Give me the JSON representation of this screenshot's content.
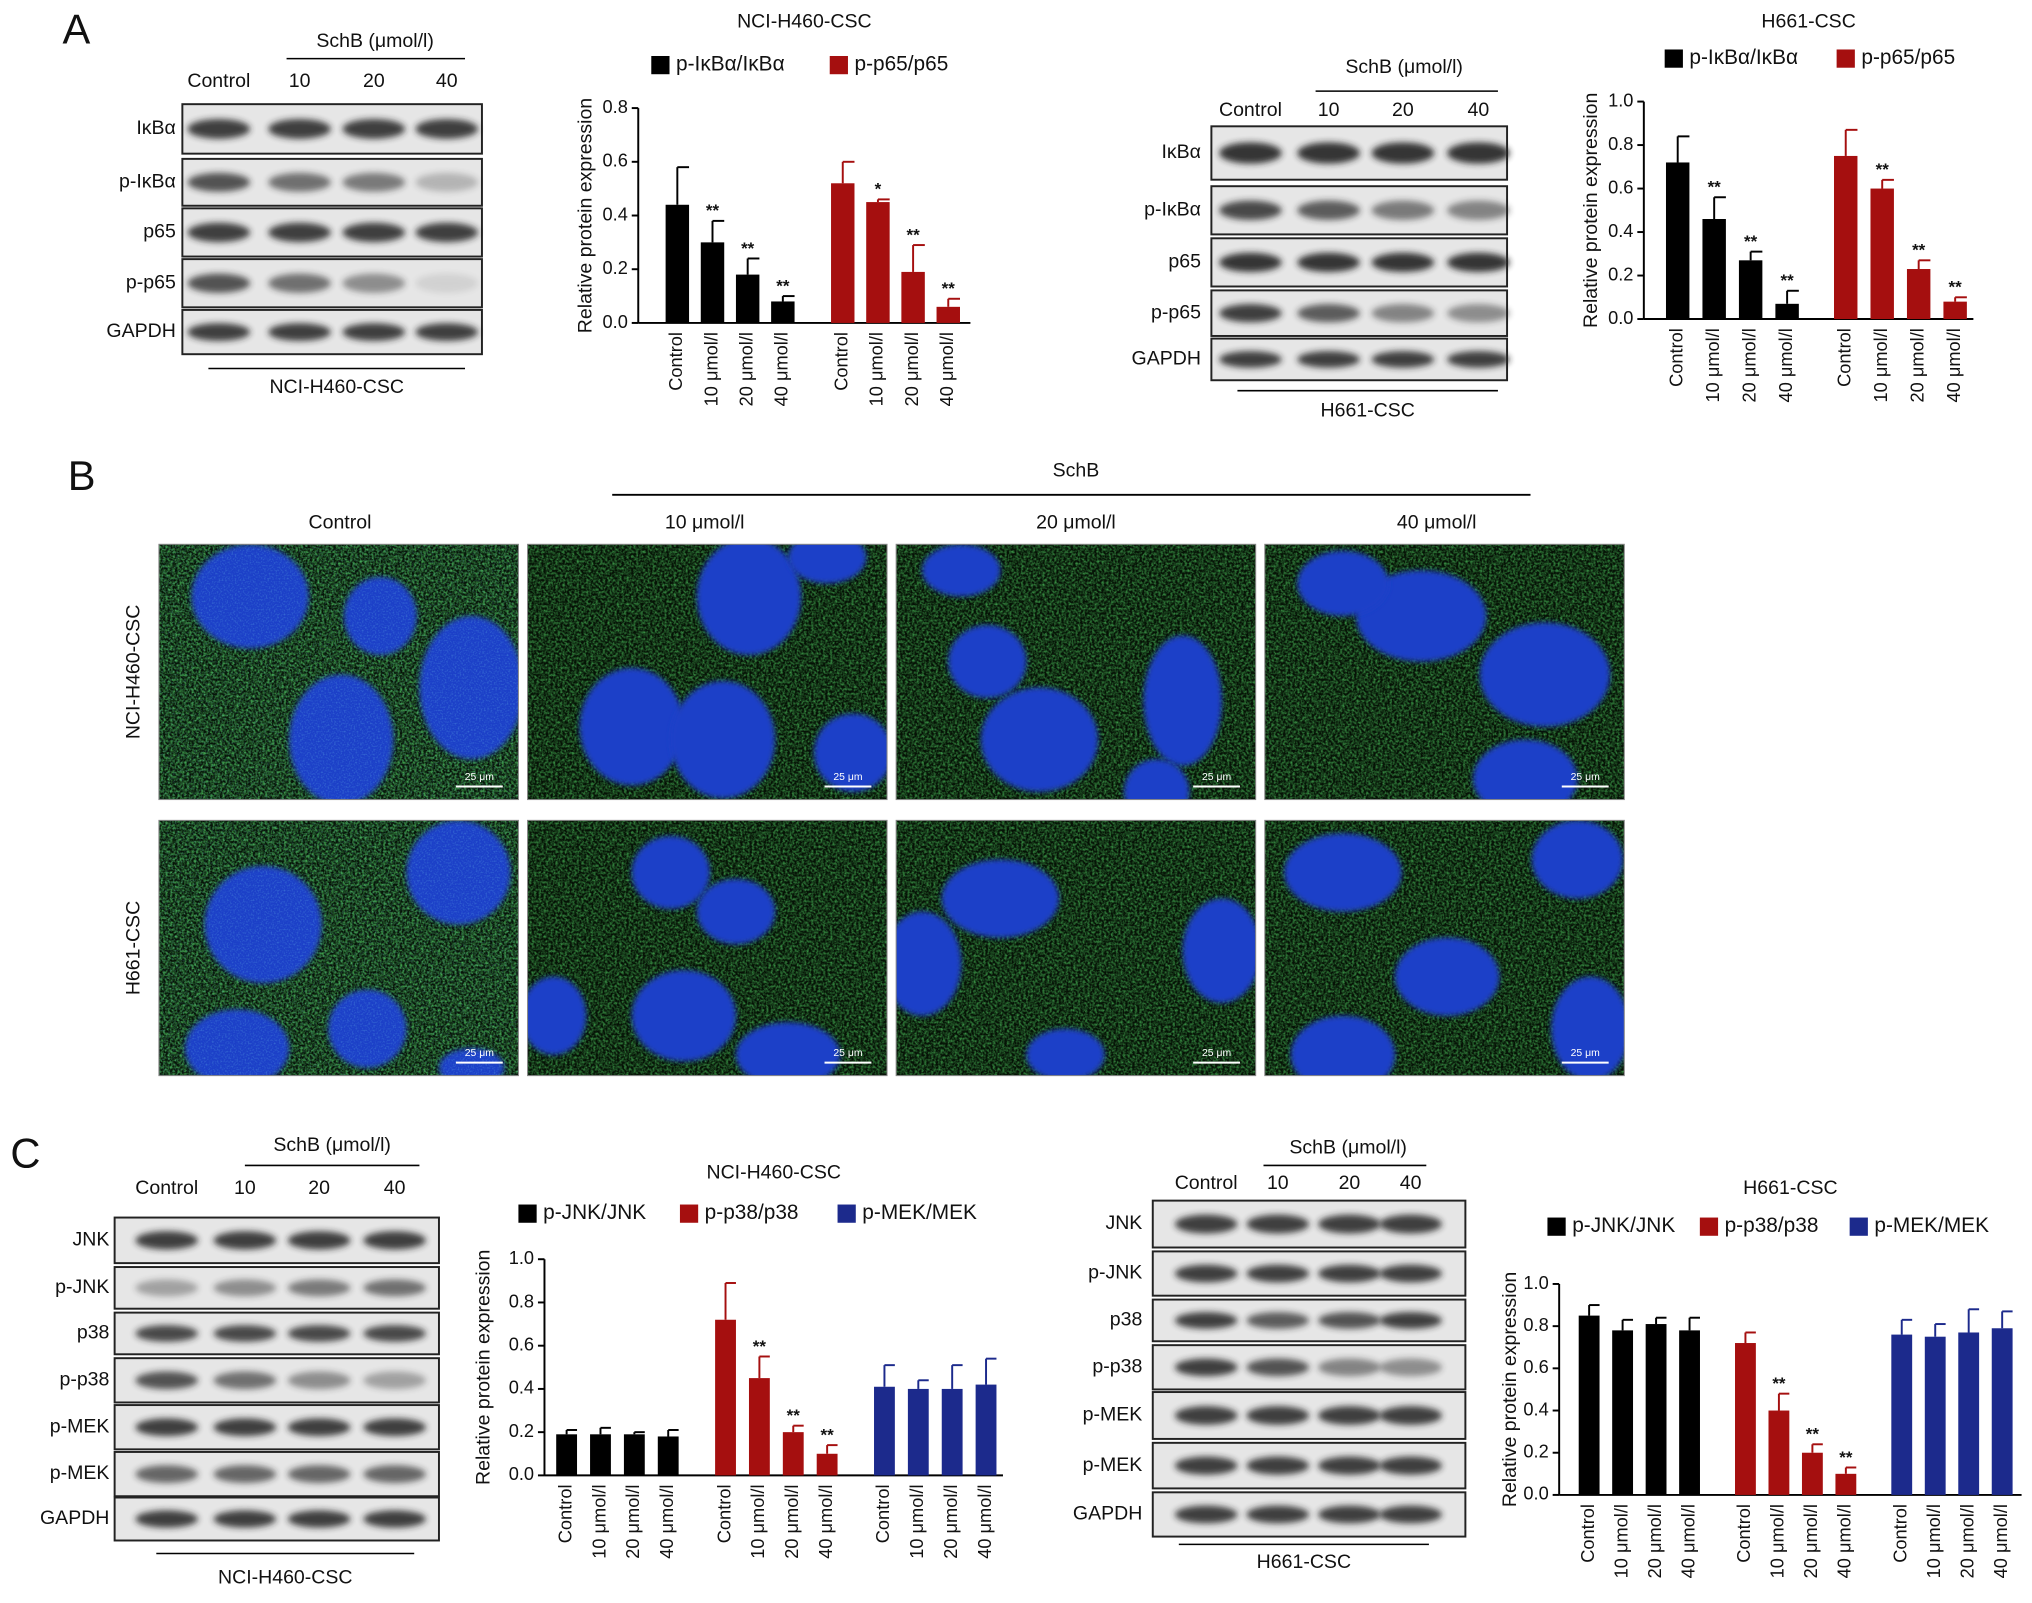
{
  "panels": {
    "a": "A",
    "b": "B",
    "c": "C"
  },
  "blots": [
    {
      "treatment": "SchB (μmol/l)",
      "lanes": [
        "Control",
        "10",
        "20",
        "40"
      ],
      "rows": [
        "IκBα",
        "p-IκBα",
        "p65",
        "p-p65",
        "GAPDH"
      ],
      "cell_line": "NCI-H460-CSC"
    },
    {
      "treatment": "SchB (μmol/l)",
      "lanes": [
        "Control",
        "10",
        "20",
        "40"
      ],
      "rows": [
        "IκBα",
        "p-IκBα",
        "p65",
        "p-p65",
        "GAPDH"
      ],
      "cell_line": "H661-CSC"
    },
    {
      "treatment": "SchB (μmol/l)",
      "lanes": [
        "Control",
        "10",
        "20",
        "40"
      ],
      "rows": [
        "JNK",
        "p-JNK",
        "p38",
        "p-p38",
        "p-MEK",
        "p-MEK",
        "GAPDH"
      ],
      "cell_line": "NCI-H460-CSC"
    },
    {
      "treatment": "SchB (μmol/l)",
      "lanes": [
        "Control",
        "10",
        "20",
        "40"
      ],
      "rows": [
        "JNK",
        "p-JNK",
        "p38",
        "p-p38",
        "p-MEK",
        "p-MEK",
        "GAPDH"
      ],
      "cell_line": "H661-CSC"
    }
  ],
  "microscopy": {
    "treatment": "SchB",
    "columns": [
      "Control",
      "10 μmol/l",
      "20 μmol/l",
      "40 μmol/l"
    ],
    "rows": [
      "NCI-H460-CSC",
      "H661-CSC"
    ],
    "scale_bar": "25 μm"
  },
  "chart_data": [
    {
      "type": "bar",
      "title": "NCI-H460-CSC",
      "ylabel": "Relative protein expression",
      "categories": [
        "Control",
        "10 μmol/l",
        "20 μmol/l",
        "40 μmol/l"
      ],
      "ylim": [
        0,
        0.8
      ],
      "yticks": [
        {
          "value": 0,
          "label": "0.0"
        },
        0.2,
        0.4,
        0.6,
        0.8
      ],
      "series": [
        {
          "name": "p-IκBα/IκBα",
          "color": "#000000",
          "values": [
            0.44,
            0.3,
            0.18,
            0.08
          ],
          "errors": [
            0.14,
            0.08,
            0.06,
            0.02
          ],
          "significance": [
            null,
            "**",
            "**",
            "**"
          ]
        },
        {
          "name": "p-p65/p65",
          "color": "#a50f0f",
          "values": [
            0.52,
            0.45,
            0.19,
            0.06
          ],
          "errors": [
            0.08,
            0.01,
            0.1,
            0.03
          ],
          "significance": [
            null,
            "*",
            "**",
            "**"
          ]
        }
      ]
    },
    {
      "type": "bar",
      "title": "H661-CSC",
      "ylabel": "Relative protein expression",
      "categories": [
        "Control",
        "10 μmol/l",
        "20 μmol/l",
        "40 μmol/l"
      ],
      "ylim": [
        0,
        1.0
      ],
      "yticks": [
        {
          "value": 0,
          "label": "0.0"
        },
        0.2,
        0.4,
        0.6,
        0.8,
        {
          "value": 1,
          "label": "1.0"
        }
      ],
      "series": [
        {
          "name": "p-IκBα/IκBα",
          "color": "#000000",
          "values": [
            0.72,
            0.46,
            0.27,
            0.07
          ],
          "errors": [
            0.12,
            0.1,
            0.04,
            0.06
          ],
          "significance": [
            null,
            "**",
            "**",
            "**"
          ]
        },
        {
          "name": "p-p65/p65",
          "color": "#a50f0f",
          "values": [
            0.75,
            0.6,
            0.23,
            0.08
          ],
          "errors": [
            0.12,
            0.04,
            0.04,
            0.02
          ],
          "significance": [
            null,
            "**",
            "**",
            "**"
          ]
        }
      ]
    },
    {
      "type": "bar",
      "title": "NCI-H460-CSC",
      "ylabel": "Relative protein expression",
      "categories": [
        "Control",
        "10 μmol/l",
        "20 μmol/l",
        "40 μmol/l"
      ],
      "ylim": [
        0,
        1.0
      ],
      "yticks": [
        {
          "value": 0,
          "label": "0.0"
        },
        0.2,
        0.4,
        0.6,
        0.8,
        {
          "value": 1,
          "label": "1.0"
        }
      ],
      "series": [
        {
          "name": "p-JNK/JNK",
          "color": "#000000",
          "values": [
            0.19,
            0.19,
            0.19,
            0.18
          ],
          "errors": [
            0.02,
            0.03,
            0.01,
            0.03
          ]
        },
        {
          "name": "p-p38/p38",
          "color": "#a50f0f",
          "values": [
            0.72,
            0.45,
            0.2,
            0.1
          ],
          "errors": [
            0.17,
            0.1,
            0.03,
            0.04
          ],
          "significance": [
            null,
            "**",
            "**",
            "**"
          ]
        },
        {
          "name": "p-MEK/MEK",
          "color": "#1c2a8c",
          "values": [
            0.41,
            0.4,
            0.4,
            0.42
          ],
          "errors": [
            0.1,
            0.04,
            0.11,
            0.12
          ]
        }
      ]
    },
    {
      "type": "bar",
      "title": "H661-CSC",
      "ylabel": "Relative protein expression",
      "categories": [
        "Control",
        "10 μmol/l",
        "20 μmol/l",
        "40 μmol/l"
      ],
      "ylim": [
        0,
        1.0
      ],
      "yticks": [
        {
          "value": 0,
          "label": "0.0"
        },
        0.2,
        0.4,
        0.6,
        0.8,
        {
          "value": 1,
          "label": "1.0"
        }
      ],
      "series": [
        {
          "name": "p-JNK/JNK",
          "color": "#000000",
          "values": [
            0.85,
            0.78,
            0.81,
            0.78
          ],
          "errors": [
            0.05,
            0.05,
            0.03,
            0.06
          ]
        },
        {
          "name": "p-p38/p38",
          "color": "#a50f0f",
          "values": [
            0.72,
            0.4,
            0.2,
            0.1
          ],
          "errors": [
            0.05,
            0.08,
            0.04,
            0.03
          ],
          "significance": [
            null,
            "**",
            "**",
            "**"
          ]
        },
        {
          "name": "p-MEK/MEK",
          "color": "#1c2a8c",
          "values": [
            0.76,
            0.75,
            0.77,
            0.79
          ],
          "errors": [
            0.07,
            0.06,
            0.11,
            0.08
          ]
        }
      ]
    }
  ]
}
